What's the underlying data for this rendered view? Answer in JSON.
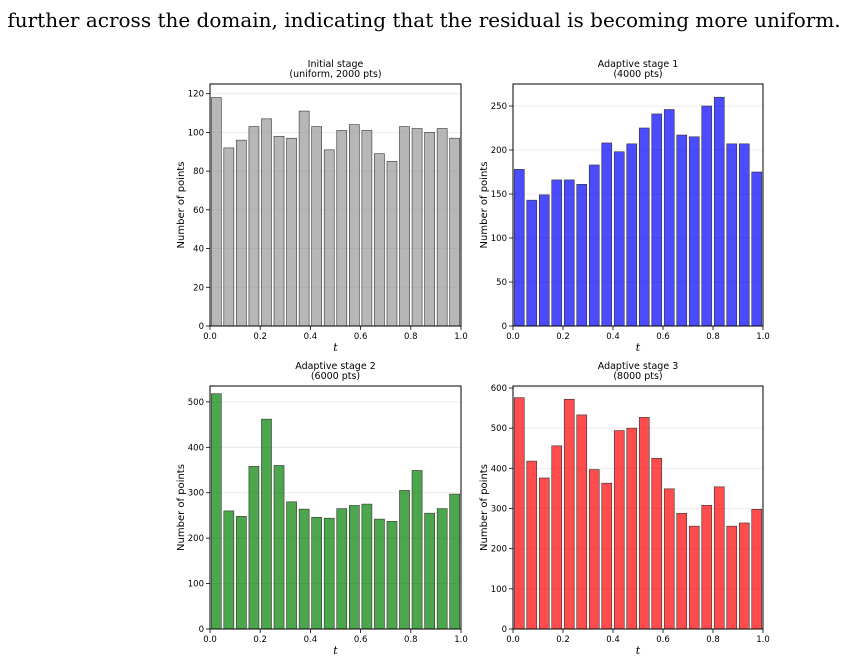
{
  "caption": "further across the domain, indicating that the residual is becoming more uniform.",
  "chart_data": [
    {
      "type": "bar",
      "title": "Initial stage\n(uniform, 2000 pts)",
      "xlabel": "t",
      "ylabel": "Number of points",
      "color": "#999999",
      "xlim": [
        0,
        1
      ],
      "ylim": [
        0,
        125
      ],
      "yticks": [
        0,
        20,
        40,
        60,
        80,
        100,
        120
      ],
      "xticks": [
        0.0,
        0.2,
        0.4,
        0.6,
        0.8,
        1.0
      ],
      "bin_centers": [
        0.025,
        0.075,
        0.125,
        0.175,
        0.225,
        0.275,
        0.325,
        0.375,
        0.425,
        0.475,
        0.525,
        0.575,
        0.625,
        0.675,
        0.725,
        0.775,
        0.825,
        0.875,
        0.925,
        0.975
      ],
      "values": [
        118,
        92,
        96,
        103,
        107,
        98,
        97,
        111,
        103,
        91,
        101,
        104,
        101,
        89,
        85,
        103,
        102,
        100,
        102,
        97
      ],
      "grid": "horizontal"
    },
    {
      "type": "bar",
      "title": "Adaptive stage 1\n(4000 pts)",
      "xlabel": "t",
      "ylabel": "Number of points",
      "color": "#0000ff",
      "xlim": [
        0,
        1
      ],
      "ylim": [
        0,
        275
      ],
      "yticks": [
        0,
        50,
        100,
        150,
        200,
        250
      ],
      "xticks": [
        0.0,
        0.2,
        0.4,
        0.6,
        0.8,
        1.0
      ],
      "bin_centers": [
        0.025,
        0.075,
        0.125,
        0.175,
        0.225,
        0.275,
        0.325,
        0.375,
        0.425,
        0.475,
        0.525,
        0.575,
        0.625,
        0.675,
        0.725,
        0.775,
        0.825,
        0.875,
        0.925,
        0.975
      ],
      "values": [
        178,
        143,
        149,
        166,
        166,
        161,
        183,
        208,
        198,
        207,
        225,
        241,
        246,
        217,
        215,
        250,
        260,
        207,
        207,
        175
      ],
      "grid": "horizontal"
    },
    {
      "type": "bar",
      "title": "Adaptive stage 2\n(6000 pts)",
      "xlabel": "t",
      "ylabel": "Number of points",
      "color": "#008000",
      "xlim": [
        0,
        1
      ],
      "ylim": [
        0,
        535
      ],
      "yticks": [
        0,
        100,
        200,
        300,
        400,
        500
      ],
      "xticks": [
        0.0,
        0.2,
        0.4,
        0.6,
        0.8,
        1.0
      ],
      "bin_centers": [
        0.025,
        0.075,
        0.125,
        0.175,
        0.225,
        0.275,
        0.325,
        0.375,
        0.425,
        0.475,
        0.525,
        0.575,
        0.625,
        0.675,
        0.725,
        0.775,
        0.825,
        0.875,
        0.925,
        0.975
      ],
      "values": [
        518,
        260,
        248,
        358,
        462,
        360,
        280,
        264,
        246,
        244,
        265,
        272,
        275,
        242,
        237,
        305,
        349,
        255,
        265,
        297
      ],
      "grid": "horizontal"
    },
    {
      "type": "bar",
      "title": "Adaptive stage 3\n(8000 pts)",
      "xlabel": "t",
      "ylabel": "Number of points",
      "color": "#ff0000",
      "xlim": [
        0,
        1
      ],
      "ylim": [
        0,
        605
      ],
      "yticks": [
        0,
        100,
        200,
        300,
        400,
        500,
        600
      ],
      "xticks": [
        0.0,
        0.2,
        0.4,
        0.6,
        0.8,
        1.0
      ],
      "bin_centers": [
        0.025,
        0.075,
        0.125,
        0.175,
        0.225,
        0.275,
        0.325,
        0.375,
        0.425,
        0.475,
        0.525,
        0.575,
        0.625,
        0.675,
        0.725,
        0.775,
        0.825,
        0.875,
        0.925,
        0.975
      ],
      "values": [
        576,
        418,
        376,
        456,
        572,
        533,
        397,
        363,
        494,
        500,
        527,
        425,
        349,
        288,
        256,
        308,
        354,
        256,
        264,
        298
      ],
      "grid": "horizontal"
    }
  ]
}
